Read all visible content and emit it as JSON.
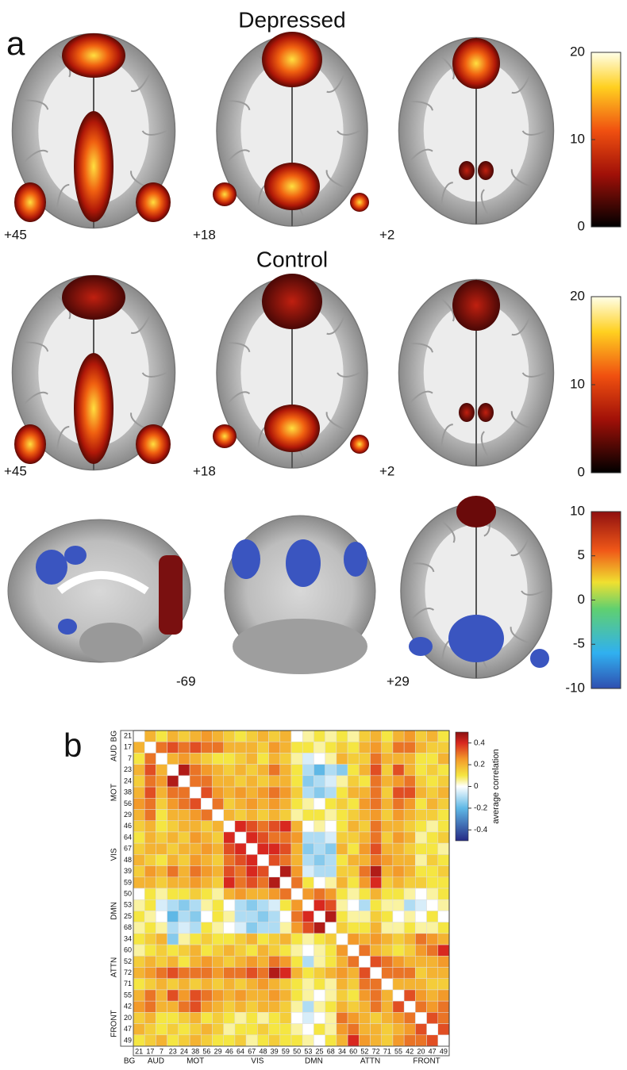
{
  "panel_a": {
    "label": "a",
    "rows": [
      {
        "title": "Depressed",
        "slice_labels": [
          "+45",
          "+18",
          "+2"
        ],
        "colorbar": {
          "lim": [
            0,
            20
          ],
          "ticks": [
            20,
            10,
            0
          ]
        }
      },
      {
        "title": "Control",
        "slice_labels": [
          "+45",
          "+18",
          "+2"
        ],
        "colorbar": {
          "lim": [
            0,
            20
          ],
          "ticks": [
            20,
            10,
            0
          ]
        }
      },
      {
        "slice_labels": [
          "-69",
          "+29"
        ],
        "colorbar": {
          "lim": [
            -10,
            10
          ],
          "ticks": [
            10,
            5,
            0,
            -5,
            -10
          ]
        }
      }
    ]
  },
  "panel_b_label": "b",
  "chart_data": {
    "type": "heatmap",
    "row_labels": [
      21,
      17,
      7,
      23,
      24,
      38,
      56,
      29,
      46,
      64,
      67,
      48,
      39,
      59,
      50,
      53,
      25,
      68,
      34,
      60,
      52,
      72,
      71,
      55,
      42,
      20,
      47,
      49
    ],
    "groups": [
      "BG",
      "AUD",
      "MOT",
      "VIS",
      "DMN",
      "ATTN",
      "FRONT"
    ],
    "values": [
      [],
      [
        0.2
      ],
      [
        0.1,
        0.3
      ],
      [
        0.2,
        0.35,
        0.2
      ],
      [
        0.15,
        0.3,
        0.25,
        0.45
      ],
      [
        0.2,
        0.35,
        0.2,
        0.3,
        0.3
      ],
      [
        0.25,
        0.3,
        0.15,
        0.25,
        0.3,
        0.35
      ],
      [
        0.2,
        0.3,
        0.1,
        0.2,
        0.2,
        0.25,
        0.3
      ],
      [
        0.15,
        0.2,
        0.1,
        0.15,
        0.2,
        0.2,
        0.15,
        0.2
      ],
      [
        0.1,
        0.2,
        0.15,
        0.2,
        0.15,
        0.25,
        0.2,
        0.15,
        0.4
      ],
      [
        0.15,
        0.2,
        0.2,
        0.15,
        0.2,
        0.2,
        0.25,
        0.2,
        0.35,
        0.4
      ],
      [
        0.2,
        0.15,
        0.1,
        0.2,
        0.15,
        0.25,
        0.2,
        0.15,
        0.3,
        0.35,
        0.4
      ],
      [
        0.15,
        0.25,
        0.2,
        0.3,
        0.2,
        0.3,
        0.25,
        0.2,
        0.35,
        0.3,
        0.4,
        0.35
      ],
      [
        0.2,
        0.2,
        0.15,
        0.2,
        0.2,
        0.25,
        0.2,
        0.15,
        0.4,
        0.3,
        0.35,
        0.3,
        0.45
      ],
      [
        0.0,
        0.1,
        0.05,
        0.1,
        0.1,
        0.15,
        0.1,
        0.05,
        0.2,
        0.25,
        0.2,
        0.2,
        0.25,
        0.3
      ],
      [
        0.05,
        0.1,
        -0.05,
        -0.1,
        -0.15,
        -0.1,
        0.05,
        0.1,
        0.0,
        -0.1,
        -0.15,
        -0.1,
        -0.05,
        0.1,
        0.25
      ],
      [
        0.1,
        0.05,
        0.0,
        -0.2,
        -0.1,
        -0.15,
        0.0,
        0.1,
        0.05,
        -0.1,
        -0.1,
        -0.15,
        -0.1,
        0.0,
        0.3,
        0.4
      ],
      [
        0.05,
        0.1,
        0.05,
        -0.1,
        -0.05,
        -0.1,
        0.1,
        0.05,
        0.0,
        -0.05,
        -0.15,
        -0.1,
        -0.1,
        0.05,
        0.25,
        0.35,
        0.45
      ],
      [
        0.1,
        0.15,
        0.2,
        -0.15,
        0.05,
        0.1,
        0.15,
        0.1,
        0.1,
        0.15,
        0.2,
        0.1,
        0.15,
        0.2,
        0.1,
        0.05,
        0.1,
        0.15
      ],
      [
        0.05,
        0.1,
        0.15,
        0.1,
        0.15,
        0.2,
        0.1,
        0.15,
        0.2,
        0.15,
        0.1,
        0.2,
        0.15,
        0.1,
        0.05,
        0.0,
        0.05,
        0.1,
        0.25
      ],
      [
        0.15,
        0.2,
        0.15,
        0.2,
        0.1,
        0.2,
        0.25,
        0.2,
        0.15,
        0.2,
        0.25,
        0.2,
        0.3,
        0.25,
        0.1,
        -0.1,
        0.05,
        0.1,
        0.2,
        0.3
      ],
      [
        0.2,
        0.25,
        0.3,
        0.35,
        0.3,
        0.3,
        0.3,
        0.25,
        0.3,
        0.3,
        0.35,
        0.3,
        0.45,
        0.4,
        0.2,
        0.1,
        0.15,
        0.2,
        0.25,
        0.2,
        0.35
      ],
      [
        0.1,
        0.15,
        0.2,
        0.15,
        0.2,
        0.15,
        0.2,
        0.15,
        0.2,
        0.15,
        0.2,
        0.25,
        0.2,
        0.15,
        0.1,
        0.05,
        0.1,
        0.05,
        0.2,
        0.15,
        0.3,
        0.3
      ],
      [
        0.2,
        0.3,
        0.2,
        0.35,
        0.25,
        0.35,
        0.3,
        0.25,
        0.2,
        0.25,
        0.2,
        0.2,
        0.25,
        0.2,
        0.1,
        0.05,
        0.0,
        0.05,
        0.15,
        0.1,
        0.25,
        0.3,
        0.2
      ],
      [
        0.25,
        0.3,
        0.2,
        0.2,
        0.3,
        0.35,
        0.25,
        0.2,
        0.15,
        0.2,
        0.15,
        0.2,
        0.2,
        0.15,
        0.05,
        -0.1,
        0.05,
        0.1,
        0.2,
        0.15,
        0.2,
        0.3,
        0.2,
        0.35
      ],
      [
        0.15,
        0.2,
        0.1,
        0.1,
        0.15,
        0.2,
        0.1,
        0.15,
        0.1,
        0.05,
        0.1,
        0.05,
        0.1,
        0.15,
        0.0,
        -0.05,
        0.0,
        0.05,
        0.3,
        0.25,
        0.2,
        0.15,
        0.2,
        0.25,
        0.3
      ],
      [
        0.2,
        0.15,
        0.1,
        0.15,
        0.1,
        0.15,
        0.2,
        0.15,
        0.05,
        0.1,
        0.1,
        0.15,
        0.1,
        0.1,
        0.05,
        0.0,
        0.1,
        0.05,
        0.25,
        0.3,
        0.2,
        0.2,
        0.15,
        0.2,
        0.25,
        0.35
      ],
      [
        0.1,
        0.15,
        0.2,
        0.1,
        0.15,
        0.2,
        0.15,
        0.1,
        0.1,
        0.15,
        0.05,
        0.1,
        0.15,
        0.1,
        0.1,
        0.05,
        0.0,
        0.1,
        0.2,
        0.4,
        0.25,
        0.2,
        0.15,
        0.25,
        0.3,
        0.3,
        0.35
      ]
    ],
    "clim": [
      -0.5,
      0.5
    ],
    "colorbar_ticks": [
      0.4,
      0.2,
      0,
      -0.2,
      -0.4
    ],
    "colorbar_label": "average correlation"
  }
}
